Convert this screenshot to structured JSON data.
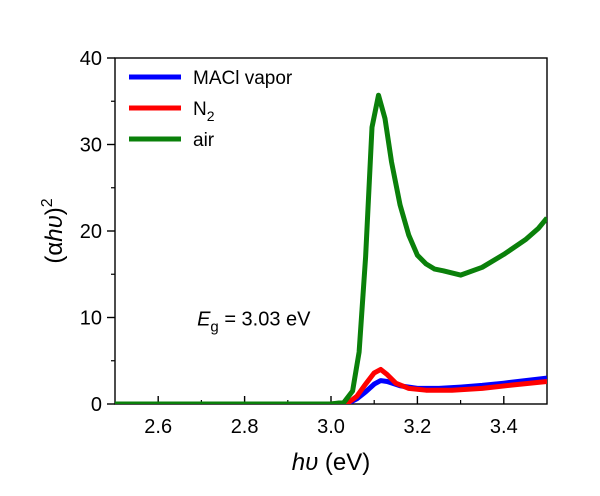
{
  "chart_data": {
    "type": "line",
    "xlabel_italic": "hυ",
    "xlabel_unit": " (eV)",
    "ylabel_open": "(",
    "ylabel_alpha": "α",
    "ylabel_italic": "hυ",
    "ylabel_close": ")",
    "ylabel_sup": "2",
    "xlim": [
      2.5,
      3.5
    ],
    "ylim": [
      0,
      40
    ],
    "x_ticks": [
      2.6,
      2.8,
      3.0,
      3.2,
      3.4
    ],
    "x_tick_labels": [
      "2.6",
      "2.8",
      "3.0",
      "3.2",
      "3.4"
    ],
    "y_ticks": [
      0,
      10,
      20,
      30,
      40
    ],
    "y_tick_labels": [
      "0",
      "10",
      "20",
      "30",
      "40"
    ],
    "legend_position": "top-left",
    "annotation": {
      "prefix": "E",
      "sub": "g",
      "text": " = 3.03 eV",
      "x": 2.69,
      "y": 9.1
    },
    "series": [
      {
        "name": "MACl vapor",
        "name_main": "MACl vapor",
        "name_sub": "",
        "color": "#0000ff",
        "points": [
          [
            2.5,
            0
          ],
          [
            3.0,
            0
          ],
          [
            3.04,
            0.1
          ],
          [
            3.06,
            0.6
          ],
          [
            3.08,
            1.4
          ],
          [
            3.1,
            2.3
          ],
          [
            3.115,
            2.7
          ],
          [
            3.13,
            2.6
          ],
          [
            3.16,
            2.1
          ],
          [
            3.2,
            1.8
          ],
          [
            3.25,
            1.8
          ],
          [
            3.3,
            1.95
          ],
          [
            3.35,
            2.15
          ],
          [
            3.4,
            2.4
          ],
          [
            3.45,
            2.7
          ],
          [
            3.5,
            3.0
          ]
        ]
      },
      {
        "name": "N2",
        "name_main": "N",
        "name_sub": "2",
        "color": "#ff0000",
        "points": [
          [
            2.5,
            0
          ],
          [
            3.0,
            0
          ],
          [
            3.04,
            0.15
          ],
          [
            3.06,
            0.9
          ],
          [
            3.08,
            2.3
          ],
          [
            3.1,
            3.6
          ],
          [
            3.115,
            4.0
          ],
          [
            3.13,
            3.4
          ],
          [
            3.15,
            2.4
          ],
          [
            3.18,
            1.8
          ],
          [
            3.22,
            1.6
          ],
          [
            3.28,
            1.6
          ],
          [
            3.35,
            1.8
          ],
          [
            3.42,
            2.2
          ],
          [
            3.5,
            2.6
          ]
        ]
      },
      {
        "name": "air",
        "name_main": "air",
        "name_sub": "",
        "color": "#0a800a",
        "points": [
          [
            2.5,
            0
          ],
          [
            3.0,
            0
          ],
          [
            3.03,
            0.2
          ],
          [
            3.05,
            1.5
          ],
          [
            3.065,
            6
          ],
          [
            3.08,
            17
          ],
          [
            3.095,
            32
          ],
          [
            3.11,
            35.7
          ],
          [
            3.125,
            33
          ],
          [
            3.14,
            28
          ],
          [
            3.16,
            23
          ],
          [
            3.18,
            19.5
          ],
          [
            3.2,
            17.2
          ],
          [
            3.22,
            16.2
          ],
          [
            3.24,
            15.6
          ],
          [
            3.26,
            15.4
          ],
          [
            3.3,
            14.9
          ],
          [
            3.35,
            15.8
          ],
          [
            3.4,
            17.3
          ],
          [
            3.45,
            19
          ],
          [
            3.48,
            20.3
          ],
          [
            3.5,
            21.5
          ]
        ]
      }
    ]
  }
}
